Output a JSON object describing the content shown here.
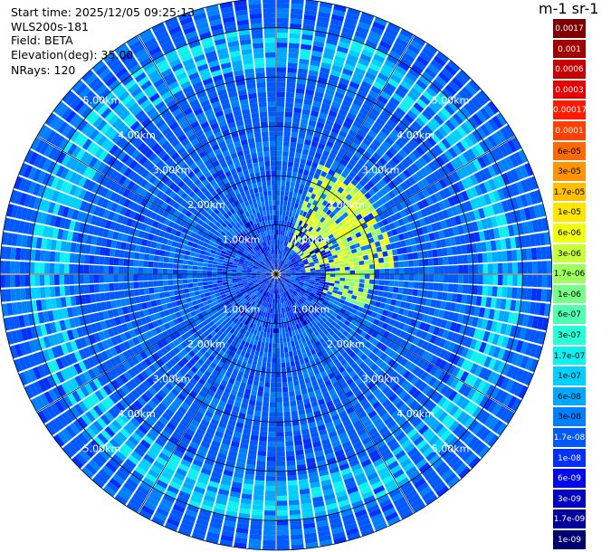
{
  "header": {
    "start_time": "Start time: 2025/12/05 09:25:13",
    "instrument": "WLS200s-181",
    "field": "Field: BETA",
    "elevation": "Elevation(deg): 35.00",
    "nrays": "NRays: 120"
  },
  "colorbar": {
    "units_label": "m-1 sr-1",
    "levels": [
      {
        "label": "0.0017",
        "color": "#7f0000"
      },
      {
        "label": "0.001",
        "color": "#a00000"
      },
      {
        "label": "0.0006",
        "color": "#c80000"
      },
      {
        "label": "0.0003",
        "color": "#e60000"
      },
      {
        "label": "0.00017",
        "color": "#ff1a00"
      },
      {
        "label": "0.0001",
        "color": "#ff4000"
      },
      {
        "label": "6e-05",
        "color": "#ff6a00"
      },
      {
        "label": "3e-05",
        "color": "#ff9400"
      },
      {
        "label": "1.7e-05",
        "color": "#ffbe00"
      },
      {
        "label": "1e-05",
        "color": "#ffe600"
      },
      {
        "label": "6e-06",
        "color": "#f0ff10"
      },
      {
        "label": "3e-06",
        "color": "#c8ff3a"
      },
      {
        "label": "1.7e-06",
        "color": "#a0ff60"
      },
      {
        "label": "1e-06",
        "color": "#78ff88"
      },
      {
        "label": "6e-07",
        "color": "#50ffb0"
      },
      {
        "label": "3e-07",
        "color": "#28ffd8"
      },
      {
        "label": "1.7e-07",
        "color": "#10f0f0"
      },
      {
        "label": "1e-07",
        "color": "#00d0ff"
      },
      {
        "label": "6e-08",
        "color": "#00a8ff"
      },
      {
        "label": "3e-08",
        "color": "#0080ff"
      },
      {
        "label": "1.7e-08",
        "color": "#0058ff"
      },
      {
        "label": "1e-08",
        "color": "#0030ff"
      },
      {
        "label": "6e-09",
        "color": "#0008ee"
      },
      {
        "label": "3e-09",
        "color": "#0000c4"
      },
      {
        "label": "1.7e-09",
        "color": "#00009a"
      },
      {
        "label": "1e-09",
        "color": "#000070"
      }
    ]
  },
  "chart_data": {
    "type": "heatmap",
    "projection": "polar-ppi",
    "field": "BETA",
    "elevation_deg": 35.0,
    "n_rays": 120,
    "max_range_km": 5.6,
    "range_rings_km": [
      1,
      2,
      3,
      4,
      5
    ],
    "ring_labels": [
      "1.00km",
      "2.00km",
      "3.00km",
      "4.00km",
      "5.00km"
    ],
    "background_level_index": 20,
    "enhanced_features": [
      {
        "description": "ring",
        "range_km_from": 4.2,
        "range_km_to": 5.0,
        "level_index": 17
      },
      {
        "description": "NE plume",
        "az_deg_from": 20,
        "az_deg_to": 85,
        "range_km_from": 0.6,
        "range_km_to": 2.4,
        "level_index": 11
      },
      {
        "description": "E plume",
        "az_deg_from": 85,
        "az_deg_to": 110,
        "range_km_from": 1.0,
        "range_km_to": 2.0,
        "level_index": 12
      }
    ]
  }
}
